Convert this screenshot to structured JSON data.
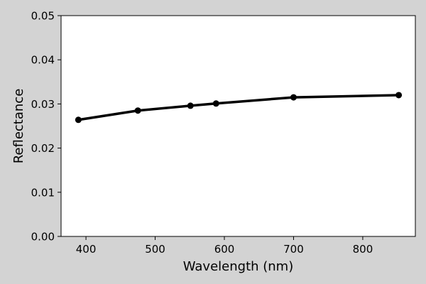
{
  "chart_data": {
    "type": "line",
    "title": "",
    "xlabel": "Wavelength (nm)",
    "ylabel": "Reflectance",
    "xlim": [
      364,
      876
    ],
    "ylim": [
      0.0,
      0.05
    ],
    "x_ticks": [
      400,
      500,
      600,
      700,
      800
    ],
    "x_tick_labels": [
      "400",
      "500",
      "600",
      "700",
      "800"
    ],
    "y_ticks": [
      0.0,
      0.01,
      0.02,
      0.03,
      0.04,
      0.05
    ],
    "y_tick_labels": [
      "0.00",
      "0.01",
      "0.02",
      "0.03",
      "0.04",
      "0.05"
    ],
    "grid": false,
    "legend": "none",
    "series": [
      {
        "x": [
          389,
          475,
          551,
          588,
          700,
          852
        ],
        "y": [
          0.0264,
          0.0285,
          0.0296,
          0.0301,
          0.0315,
          0.032
        ],
        "color": "#000000",
        "marker": "circle"
      }
    ]
  },
  "colors": {
    "figure_background": "#d3d3d3",
    "plot_background": "#ffffff",
    "line": "#000000"
  }
}
